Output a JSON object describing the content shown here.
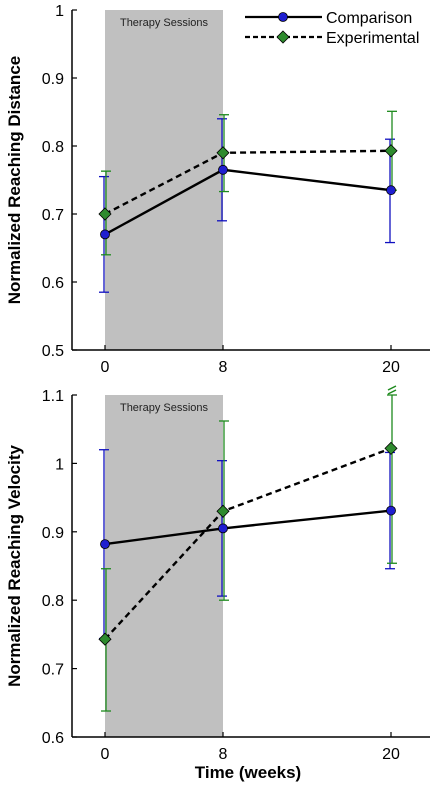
{
  "colors": {
    "comparison": "#1010c0",
    "comparison_marker": "#1f1fd0",
    "experimental": "#1e8a1e",
    "experimental_marker": "#2e8b2e",
    "shade": "#c0c0c0",
    "line": "#000000"
  },
  "legend": {
    "comparison": "Comparison",
    "experimental": "Experimental"
  },
  "xlabel": "Time (weeks)",
  "chart_data": [
    {
      "type": "line",
      "ylabel": "Normalized Reaching Distance",
      "ylim": [
        0.5,
        1.0
      ],
      "yticks": [
        "0.5",
        "0.6",
        "0.7",
        "0.8",
        "0.9",
        "1"
      ],
      "x": [
        0,
        8,
        20
      ],
      "xticks": [
        "0",
        "8",
        "20"
      ],
      "shaded_region": {
        "from": 0,
        "to": 8,
        "label": "Therapy Sessions"
      },
      "legend_position": "top-right",
      "series": [
        {
          "name": "Comparison",
          "values": [
            0.67,
            0.765,
            0.735
          ],
          "err_low": [
            0.585,
            0.69,
            0.658
          ],
          "err_high": [
            0.755,
            0.84,
            0.81
          ],
          "style": "solid",
          "marker": "circle"
        },
        {
          "name": "Experimental",
          "values": [
            0.7,
            0.79,
            0.793
          ],
          "err_low": [
            0.64,
            0.733,
            0.735
          ],
          "err_high": [
            0.763,
            0.846,
            0.851
          ],
          "style": "dashed",
          "marker": "diamond"
        }
      ]
    },
    {
      "type": "line",
      "ylabel": "Normalized Reaching Velocity",
      "ylim": [
        0.6,
        1.1
      ],
      "yticks": [
        "0.6",
        "0.7",
        "0.8",
        "0.9",
        "1",
        "1.1"
      ],
      "x": [
        0,
        8,
        20
      ],
      "xticks": [
        "0",
        "8",
        "20"
      ],
      "shaded_region": {
        "from": 0,
        "to": 8,
        "label": "Therapy Sessions"
      },
      "axis_break_at_x": 20,
      "series": [
        {
          "name": "Comparison",
          "values": [
            0.882,
            0.905,
            0.931
          ],
          "err_low": [
            0.744,
            0.806,
            0.846
          ],
          "err_high": [
            1.02,
            1.004,
            1.016
          ],
          "style": "solid",
          "marker": "circle"
        },
        {
          "name": "Experimental",
          "values": [
            0.743,
            0.93,
            1.022
          ],
          "err_low": [
            0.638,
            0.8,
            0.854
          ],
          "err_high": [
            0.846,
            1.062,
            1.1
          ],
          "style": "dashed",
          "marker": "diamond"
        }
      ]
    }
  ]
}
